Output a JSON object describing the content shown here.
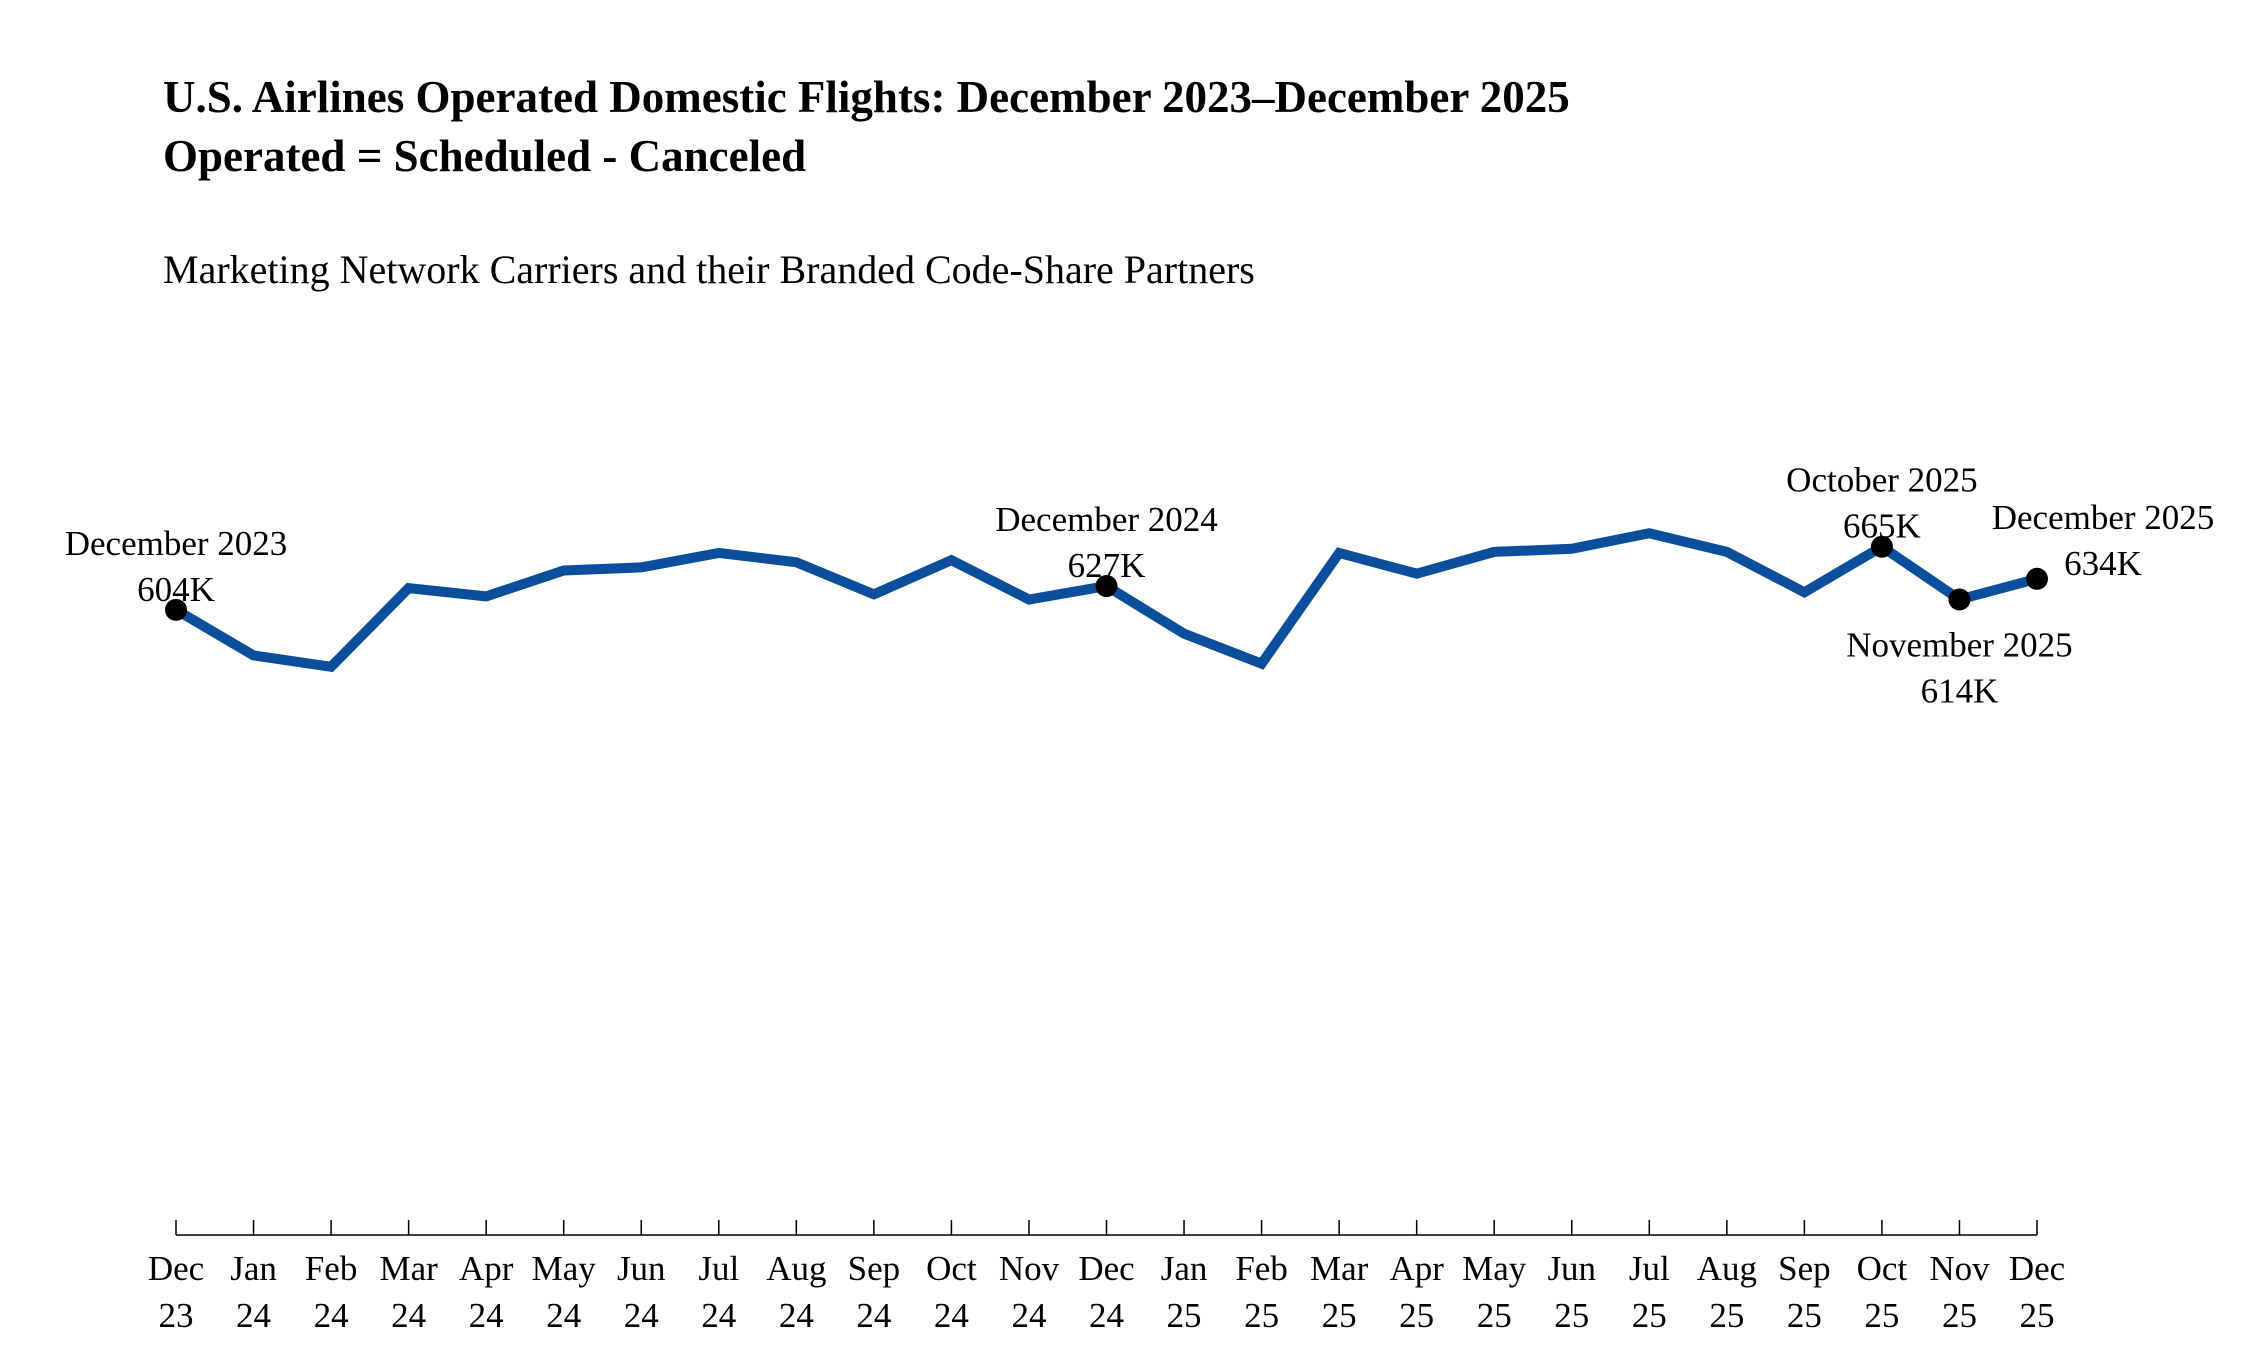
{
  "chart_data": {
    "type": "line",
    "title": "U.S. Airlines Operated Domestic Flights: December 2023–December 2025",
    "title_line2": "Operated = Scheduled - Canceled",
    "subtitle": "Marketing Network Carriers and their Branded Code-Share Partners",
    "xlabel": "",
    "ylabel": "",
    "unit": "thousands of flights",
    "ylim": [
      0,
      700
    ],
    "y_axis_shown": false,
    "grid": false,
    "line_color": "#0b4f9c",
    "marker_color": "#000000",
    "categories": [
      [
        "Dec",
        "23"
      ],
      [
        "Jan",
        "24"
      ],
      [
        "Feb",
        "24"
      ],
      [
        "Mar",
        "24"
      ],
      [
        "Apr",
        "24"
      ],
      [
        "May",
        "24"
      ],
      [
        "Jun",
        "24"
      ],
      [
        "Jul",
        "24"
      ],
      [
        "Aug",
        "24"
      ],
      [
        "Sep",
        "24"
      ],
      [
        "Oct",
        "24"
      ],
      [
        "Nov",
        "24"
      ],
      [
        "Dec",
        "24"
      ],
      [
        "Jan",
        "25"
      ],
      [
        "Feb",
        "25"
      ],
      [
        "Mar",
        "25"
      ],
      [
        "Apr",
        "25"
      ],
      [
        "May",
        "25"
      ],
      [
        "Jun",
        "25"
      ],
      [
        "Jul",
        "25"
      ],
      [
        "Aug",
        "25"
      ],
      [
        "Sep",
        "25"
      ],
      [
        "Oct",
        "25"
      ],
      [
        "Nov",
        "25"
      ],
      [
        "Dec",
        "25"
      ]
    ],
    "values": [
      604,
      560,
      549,
      625,
      617,
      642,
      645,
      659,
      650,
      619,
      652,
      614,
      627,
      581,
      552,
      659,
      639,
      660,
      663,
      678,
      660,
      621,
      665,
      614,
      634
    ],
    "annotations": [
      {
        "index": 0,
        "label": "December 2023",
        "value_label": "604K",
        "position": "above"
      },
      {
        "index": 12,
        "label": "December 2024",
        "value_label": "627K",
        "position": "above"
      },
      {
        "index": 22,
        "label": "October 2025",
        "value_label": "665K",
        "position": "above"
      },
      {
        "index": 23,
        "label": "November 2025",
        "value_label": "614K",
        "position": "below"
      },
      {
        "index": 24,
        "label": "December 2025",
        "value_label": "634K",
        "position": "above-right"
      }
    ]
  }
}
